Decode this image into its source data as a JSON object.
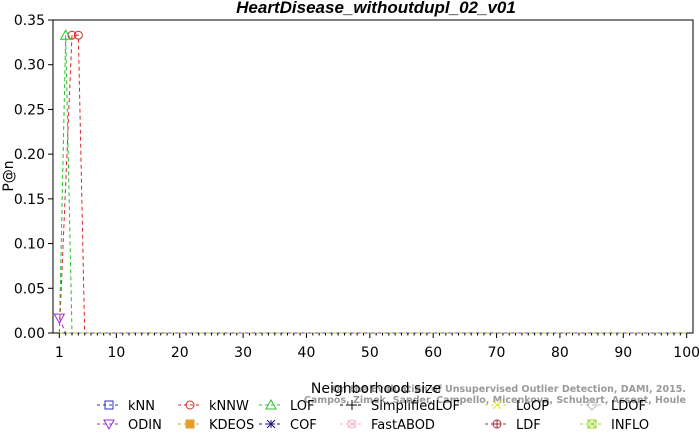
{
  "chart_data": {
    "type": "line",
    "title": "HeartDisease_withoutdupl_02_v01",
    "xlabel": "Neighborhood size",
    "ylabel": "P@n",
    "xlim": [
      0,
      101
    ],
    "ylim": [
      0,
      0.35
    ],
    "xticks": [
      1,
      10,
      20,
      30,
      40,
      50,
      60,
      70,
      80,
      90,
      100
    ],
    "yticks": [
      "0.00",
      "0.05",
      "0.10",
      "0.15",
      "0.20",
      "0.25",
      "0.30",
      "0.35"
    ],
    "grid": false,
    "legend_position": "bottom",
    "series": [
      {
        "name": "kNN",
        "color": "#2b2bd6",
        "marker": "square",
        "points": [
          [
            1,
            0.0
          ],
          [
            100,
            0.0
          ]
        ]
      },
      {
        "name": "kNNW",
        "color": "#d62b2b",
        "marker": "circle",
        "points": [
          [
            1,
            0.0
          ],
          [
            3,
            0.333
          ],
          [
            4,
            0.333
          ],
          [
            5,
            0.0
          ],
          [
            100,
            0.0
          ]
        ]
      },
      {
        "name": "LOF",
        "color": "#2bc02b",
        "marker": "triangle-up",
        "points": [
          [
            1,
            0.0
          ],
          [
            2,
            0.333
          ],
          [
            3,
            0.0
          ],
          [
            100,
            0.0
          ]
        ]
      },
      {
        "name": "SimplifiedLOF",
        "color": "#000000",
        "marker": "plus",
        "points": [
          [
            1,
            0.0
          ],
          [
            100,
            0.0
          ]
        ]
      },
      {
        "name": "LoOP",
        "color": "#e6e62b",
        "marker": "x",
        "points": [
          [
            1,
            0.0
          ],
          [
            100,
            0.0
          ]
        ]
      },
      {
        "name": "LDOF",
        "color": "#bbbbbb",
        "marker": "diamond",
        "points": [
          [
            1,
            0.0
          ],
          [
            100,
            0.0
          ]
        ]
      },
      {
        "name": "ODIN",
        "color": "#9a2bd6",
        "marker": "triangle-down",
        "points": [
          [
            1,
            0.0167
          ],
          [
            2,
            0.0
          ],
          [
            100,
            0.0
          ]
        ]
      },
      {
        "name": "KDEOS",
        "color": "#e6a12b",
        "marker": "square-filled",
        "points": [
          [
            1,
            0.0
          ],
          [
            100,
            0.0
          ]
        ]
      },
      {
        "name": "COF",
        "color": "#1a1a7a",
        "marker": "asterisk",
        "points": [
          [
            1,
            0.0
          ],
          [
            100,
            0.0
          ]
        ]
      },
      {
        "name": "FastABOD",
        "color": "#f2b6c6",
        "marker": "cross-circle",
        "points": [
          [
            1,
            0.0
          ],
          [
            100,
            0.0
          ]
        ]
      },
      {
        "name": "LDF",
        "color": "#a0303a",
        "marker": "circle-plus",
        "points": [
          [
            1,
            0.0
          ],
          [
            4,
            0.0
          ],
          [
            100,
            0.0
          ]
        ]
      },
      {
        "name": "INFLO",
        "color": "#9ad62b",
        "marker": "square-x",
        "points": [
          [
            1,
            0.0
          ],
          [
            100,
            0.0
          ]
        ]
      }
    ]
  },
  "watermark": [
    "Campos, Zimek, Sander, Campello, Micenkova, Schubert, Assent, Houle",
    "On the Evaluation of Unsupervised Outlier Detection, DAMI, 2015."
  ]
}
